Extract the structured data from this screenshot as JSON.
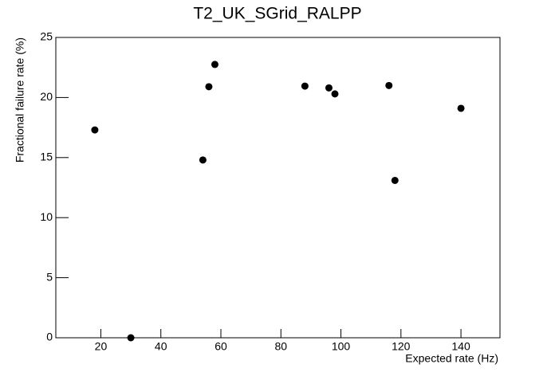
{
  "chart_data": {
    "type": "scatter",
    "title": "T2_UK_SGrid_RALPP",
    "x_label": "Expected rate (Hz)",
    "y_label": "Fractional failure rate (%)",
    "x": [
      18,
      30,
      54,
      56,
      58,
      88,
      96,
      98,
      116,
      118,
      140
    ],
    "values": [
      17.3,
      0,
      14.8,
      20.9,
      22.75,
      20.95,
      20.8,
      20.3,
      21.0,
      13.1,
      19.1
    ],
    "color": "#000000",
    "xlim": [
      5,
      153
    ],
    "xticks": [
      20,
      40,
      60,
      80,
      100,
      120,
      140
    ],
    "ylim": [
      0,
      25
    ],
    "yticks": [
      0,
      5,
      10,
      15,
      20,
      25
    ]
  }
}
